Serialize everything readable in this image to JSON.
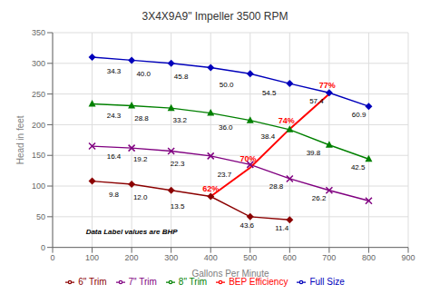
{
  "chart_data": {
    "type": "line",
    "title": "3X4X9A9\" Impeller 3500 RPM",
    "xlabel": "Gallons Per Minute",
    "ylabel": "Head in feet",
    "xlim": [
      0,
      900
    ],
    "ylim": [
      0,
      350
    ],
    "xticks": [
      0,
      100,
      200,
      300,
      400,
      500,
      600,
      700,
      800,
      900
    ],
    "yticks": [
      0,
      50,
      100,
      150,
      200,
      250,
      300,
      350
    ],
    "grid": true,
    "legend": "bottom",
    "annotations": [
      {
        "text": "Data Label values are BHP",
        "x": 200,
        "y": 22
      }
    ],
    "series": [
      {
        "name": "Full Size",
        "color": "#0000bb",
        "marker": "diamond",
        "x": [
          100,
          200,
          300,
          400,
          500,
          600,
          700,
          800
        ],
        "values": [
          310,
          305,
          300,
          293,
          283,
          267,
          252,
          230
        ],
        "annotations": [
          {
            "text": "34.3",
            "x": 155,
            "y": 293
          },
          {
            "text": "40.0",
            "x": 230,
            "y": 289
          },
          {
            "text": "45.8",
            "x": 325,
            "y": 284
          },
          {
            "text": "50.0",
            "x": 440,
            "y": 271
          },
          {
            "text": "54.5",
            "x": 548,
            "y": 257
          },
          {
            "text": "57.4",
            "x": 668,
            "y": 244
          },
          {
            "text": "60.9",
            "x": 775,
            "y": 222
          }
        ]
      },
      {
        "name": "8\" Trim",
        "color": "#008000",
        "marker": "triangle",
        "x": [
          100,
          200,
          300,
          400,
          500,
          600,
          700,
          800
        ],
        "values": [
          234,
          231,
          227,
          219,
          207,
          192,
          167,
          144
        ],
        "annotations": [
          {
            "text": "24.3",
            "x": 155,
            "y": 221
          },
          {
            "text": "28.8",
            "x": 225,
            "y": 217
          },
          {
            "text": "33.2",
            "x": 322,
            "y": 213
          },
          {
            "text": "36.0",
            "x": 438,
            "y": 201
          },
          {
            "text": "38.4",
            "x": 545,
            "y": 187
          },
          {
            "text": "39.8",
            "x": 660,
            "y": 160
          },
          {
            "text": "42.5",
            "x": 773,
            "y": 136
          }
        ]
      },
      {
        "name": "7\" Trim",
        "color": "#800080",
        "marker": "x",
        "x": [
          100,
          200,
          300,
          400,
          500,
          600,
          700,
          800
        ],
        "values": [
          165,
          162,
          157,
          149,
          135,
          112,
          93,
          76
        ],
        "annotations": [
          {
            "text": "16.4",
            "x": 155,
            "y": 154
          },
          {
            "text": "19.2",
            "x": 222,
            "y": 149
          },
          {
            "text": "22.3",
            "x": 316,
            "y": 143
          },
          {
            "text": "23.7",
            "x": 435,
            "y": 125
          },
          {
            "text": "28.8",
            "x": 566,
            "y": 105
          },
          {
            "text": "26.2",
            "x": 674,
            "y": 86
          }
        ]
      },
      {
        "name": "6\" Trim",
        "color": "#8b0000",
        "marker": "diamond",
        "x": [
          100,
          200,
          300,
          400,
          500,
          600
        ],
        "values": [
          108,
          103,
          93,
          83,
          50,
          45
        ],
        "annotations": [
          {
            "text": "9.8",
            "x": 155,
            "y": 92
          },
          {
            "text": "12.0",
            "x": 222,
            "y": 87
          },
          {
            "text": "13.5",
            "x": 316,
            "y": 73
          },
          {
            "text": "43.6",
            "x": 492,
            "y": 42
          },
          {
            "text": "11.4",
            "x": 580,
            "y": 37
          }
        ]
      },
      {
        "name": "BEP Efficiency",
        "color": "#ff0000",
        "marker": "none",
        "x": [
          400,
          500,
          600,
          700
        ],
        "values": [
          83,
          130,
          193,
          250
        ],
        "annotations": [
          {
            "text": "62%",
            "x": 400,
            "y": 90
          },
          {
            "text": "70%",
            "x": 495,
            "y": 138
          },
          {
            "text": "74%",
            "x": 592,
            "y": 200
          },
          {
            "text": "77%",
            "x": 695,
            "y": 258
          }
        ]
      }
    ]
  }
}
